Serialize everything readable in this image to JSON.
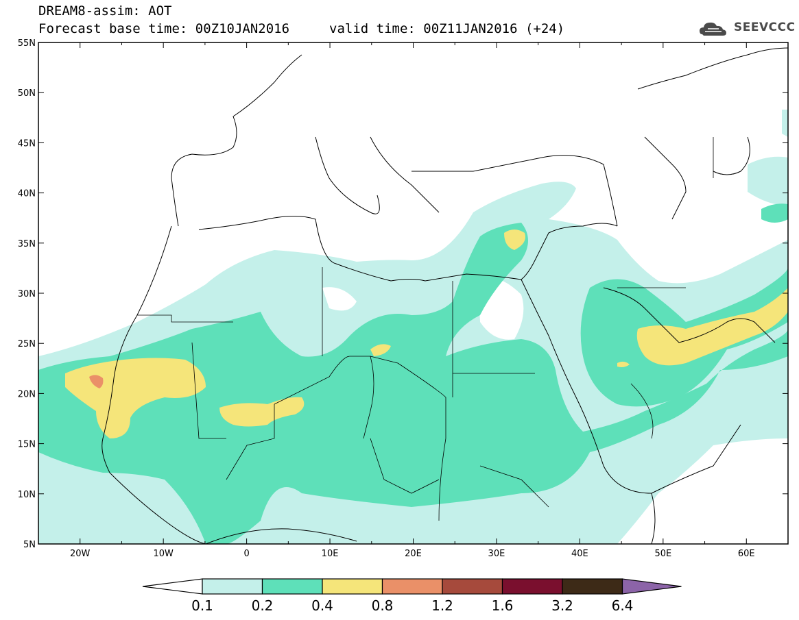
{
  "header": {
    "line1": "DREAM8-assim: AOT",
    "line2": "Forecast base time: 00Z10JAN2016",
    "valid": "valid time: 00Z11JAN2016 (+24)",
    "logo_text": "SEEVCCC"
  },
  "map": {
    "lat_labels": [
      "55N",
      "50N",
      "45N",
      "40N",
      "35N",
      "30N",
      "25N",
      "20N",
      "15N",
      "10N",
      "5N"
    ],
    "lon_labels": [
      "20W",
      "10W",
      "0",
      "10E",
      "20E",
      "30E",
      "40E",
      "50E",
      "60E"
    ]
  },
  "colorbar": {
    "labels": [
      "0.1",
      "0.2",
      "0.4",
      "0.8",
      "1.2",
      "1.6",
      "3.2",
      "6.4"
    ],
    "colors": [
      "#ffffff",
      "#c4f0ea",
      "#5ee0b9",
      "#f5e57a",
      "#ea9068",
      "#a64a3c",
      "#7a0f2e",
      "#3d2a17",
      "#8c64a8"
    ]
  },
  "colors": {
    "c01": "#c4f0ea",
    "c02": "#5ee0b9",
    "c04": "#f5e57a",
    "c08": "#ea9068"
  }
}
